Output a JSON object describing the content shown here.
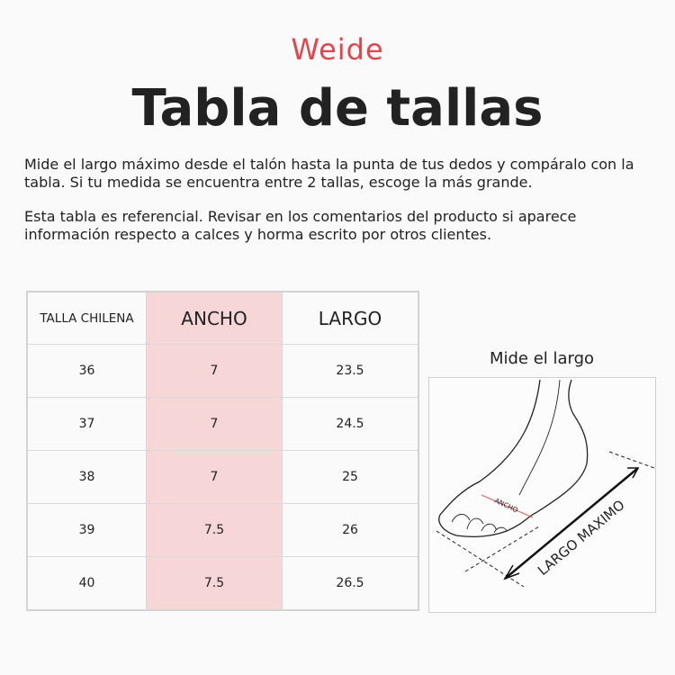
{
  "brand": {
    "logo": "Weide",
    "color": "#e0474c"
  },
  "title": "Tabla de tallas",
  "paragraphs": [
    "Mide el largo máximo desde el talón hasta la punta de tus dedos y compáralo con la tabla. Si tu medida se encuentra entre 2 tallas, escoge la más grande.",
    "Esta tabla es referencial. Revisar en los comentarios del producto si aparece información respecto a calces y horma escrito por otros clientes."
  ],
  "table": {
    "headers": [
      "TALLA CHILENA",
      "ANCHO",
      "LARGO"
    ],
    "highlight_color": "#f6d6d7",
    "rows": [
      [
        "36",
        "7",
        "23.5"
      ],
      [
        "37",
        "7",
        "24.5"
      ],
      [
        "38",
        "7",
        "25"
      ],
      [
        "39",
        "7.5",
        "26"
      ],
      [
        "40",
        "7.5",
        "26.5"
      ]
    ]
  },
  "diagram": {
    "title": "Mide el largo",
    "ancho_label": "ANCHO",
    "largo_label": "LARGO MAXIMO"
  }
}
